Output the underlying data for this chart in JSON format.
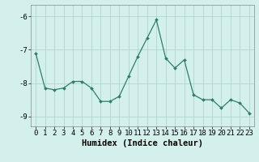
{
  "x": [
    0,
    1,
    2,
    3,
    4,
    5,
    6,
    7,
    8,
    9,
    10,
    11,
    12,
    13,
    14,
    15,
    16,
    17,
    18,
    19,
    20,
    21,
    22,
    23
  ],
  "y": [
    -7.1,
    -8.15,
    -8.2,
    -8.15,
    -7.95,
    -7.95,
    -8.15,
    -8.55,
    -8.55,
    -8.4,
    -7.8,
    -7.2,
    -6.65,
    -6.1,
    -7.25,
    -7.55,
    -7.3,
    -8.35,
    -8.5,
    -8.5,
    -8.75,
    -8.5,
    -8.6,
    -8.9
  ],
  "line_color": "#2e7d6e",
  "marker": "D",
  "marker_size": 2.0,
  "background_color": "#d4f0ec",
  "grid_color": "#aacfca",
  "xlabel": "Humidex (Indice chaleur)",
  "xlim": [
    -0.5,
    23.5
  ],
  "ylim": [
    -9.3,
    -5.65
  ],
  "yticks": [
    -9,
    -8,
    -7,
    -6
  ],
  "xticks": [
    0,
    1,
    2,
    3,
    4,
    5,
    6,
    7,
    8,
    9,
    10,
    11,
    12,
    13,
    14,
    15,
    16,
    17,
    18,
    19,
    20,
    21,
    22,
    23
  ],
  "tick_labelsize": 6.5,
  "xlabel_fontsize": 7.5,
  "linewidth": 0.9
}
